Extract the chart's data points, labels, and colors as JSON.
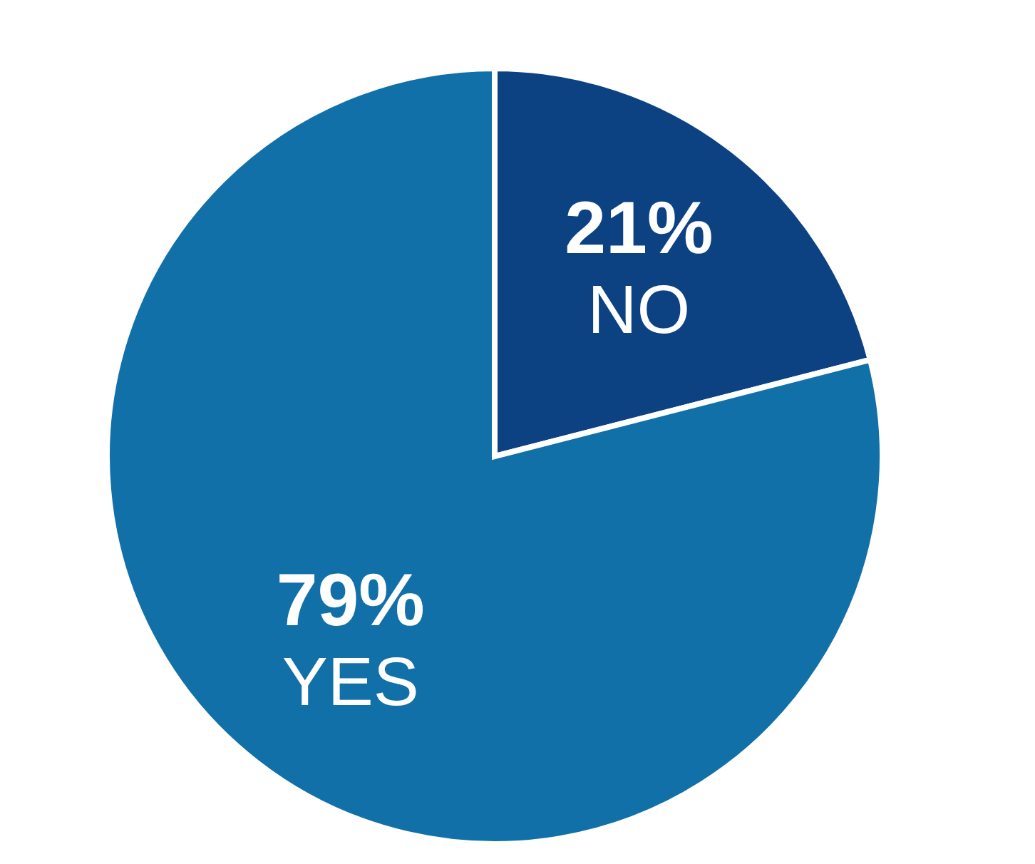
{
  "chart_data": {
    "type": "pie",
    "categories": [
      "NO",
      "YES"
    ],
    "values": [
      21,
      79
    ],
    "colors": [
      "#0c4282",
      "#1170a8"
    ],
    "value_labels": [
      "21%",
      "79%"
    ]
  }
}
